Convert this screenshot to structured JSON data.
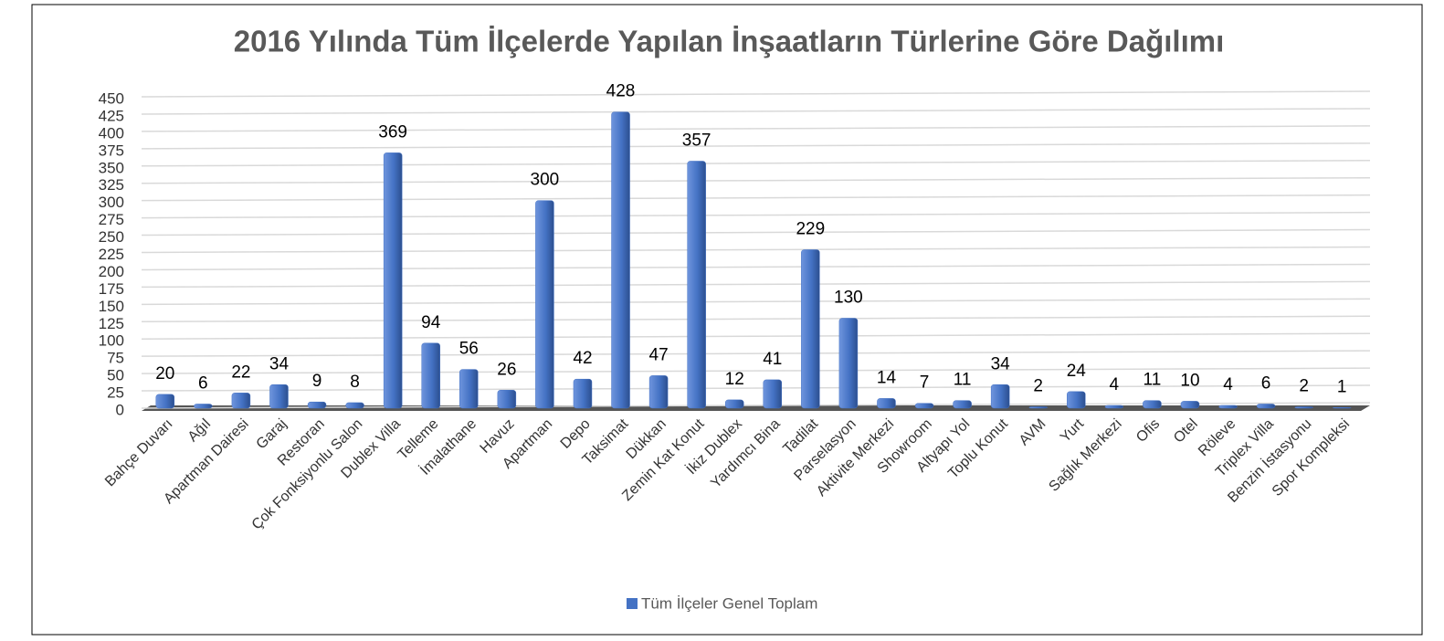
{
  "chart_data": {
    "type": "bar",
    "title": "2016 Yılında Tüm İlçelerde Yapılan İnşaatların Türlerine Göre Dağılımı",
    "categories": [
      "Bahçe Duvarı",
      "Ağıl",
      "Apartman Dairesi",
      "Garaj",
      "Restoran",
      "Çok Fonksiyonlu Salon",
      "Dublex Villa",
      "Telleme",
      "İmalathane",
      "Havuz",
      "Apartman",
      "Depo",
      "Taksimat",
      "Dükkan",
      "Zemin Kat Konut",
      "İkiz Dublex",
      "Yardımcı Bina",
      "Tadilat",
      "Parselasyon",
      "Aktivite Merkezi",
      "Showroom",
      "Altyapı Yol",
      "Toplu Konut",
      "AVM",
      "Yurt",
      "Sağlık Merkezi",
      "Ofis",
      "Otel",
      "Röleve",
      "Triplex Villa",
      "Benzin İstasyonu",
      "Spor Kompleksi"
    ],
    "series": [
      {
        "name": "Tüm İlçeler Genel Toplam",
        "color": "#4472c4",
        "values": [
          20,
          6,
          22,
          34,
          9,
          8,
          369,
          94,
          56,
          26,
          300,
          42,
          428,
          47,
          357,
          12,
          41,
          229,
          130,
          14,
          7,
          11,
          34,
          2,
          24,
          4,
          11,
          10,
          4,
          6,
          2,
          1
        ]
      }
    ],
    "ylim": [
      0,
      450
    ],
    "yticks": [
      0,
      25,
      50,
      75,
      100,
      125,
      150,
      175,
      200,
      225,
      250,
      275,
      300,
      325,
      350,
      375,
      400,
      425,
      450
    ],
    "grid": true,
    "legend": "bottom"
  }
}
